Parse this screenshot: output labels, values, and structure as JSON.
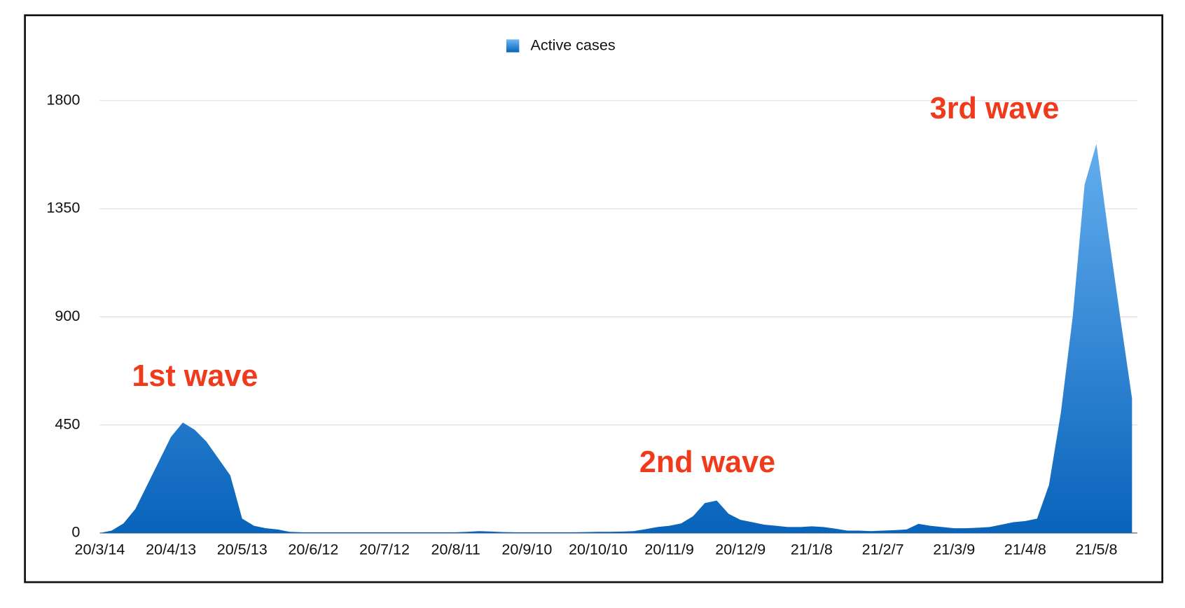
{
  "chart_data": {
    "type": "area",
    "categories": [
      "20/3/14",
      null,
      null,
      null,
      null,
      null,
      "20/4/13",
      null,
      null,
      null,
      null,
      null,
      "20/5/13",
      null,
      null,
      null,
      null,
      null,
      "20/6/12",
      null,
      null,
      null,
      null,
      null,
      "20/7/12",
      null,
      null,
      null,
      null,
      null,
      "20/8/11",
      null,
      null,
      null,
      null,
      null,
      "20/9/10",
      null,
      null,
      null,
      null,
      null,
      "20/10/10",
      null,
      null,
      null,
      null,
      null,
      "20/11/9",
      null,
      null,
      null,
      null,
      null,
      "20/12/9",
      null,
      null,
      null,
      null,
      null,
      "21/1/8",
      null,
      null,
      null,
      null,
      null,
      "21/2/7",
      null,
      null,
      null,
      null,
      null,
      "21/3/9",
      null,
      null,
      null,
      null,
      null,
      "21/4/8",
      null,
      null,
      null,
      null,
      null,
      "21/5/8",
      null,
      null,
      null
    ],
    "series": [
      {
        "name": "Active cases",
        "color": "#0a6ac0",
        "values": [
          0,
          10,
          40,
          100,
          200,
          300,
          400,
          460,
          430,
          380,
          310,
          240,
          60,
          30,
          20,
          15,
          5,
          3,
          3,
          3,
          3,
          3,
          3,
          3,
          3,
          3,
          3,
          3,
          3,
          3,
          3,
          5,
          8,
          6,
          4,
          3,
          3,
          3,
          3,
          3,
          3,
          4,
          5,
          5,
          6,
          8,
          16,
          25,
          30,
          40,
          70,
          125,
          135,
          80,
          55,
          45,
          35,
          30,
          25,
          25,
          28,
          25,
          18,
          10,
          10,
          8,
          10,
          12,
          15,
          38,
          30,
          25,
          20,
          20,
          22,
          25,
          35,
          45,
          50,
          60,
          200,
          500,
          900,
          1450,
          1620,
          1250,
          900,
          560
        ]
      }
    ],
    "ylim": [
      0,
      1800
    ],
    "yticks": [
      0,
      450,
      900,
      1350,
      1800
    ],
    "grid": true,
    "annotations": [
      "1st wave",
      "2nd wave",
      "3rd wave"
    ]
  }
}
